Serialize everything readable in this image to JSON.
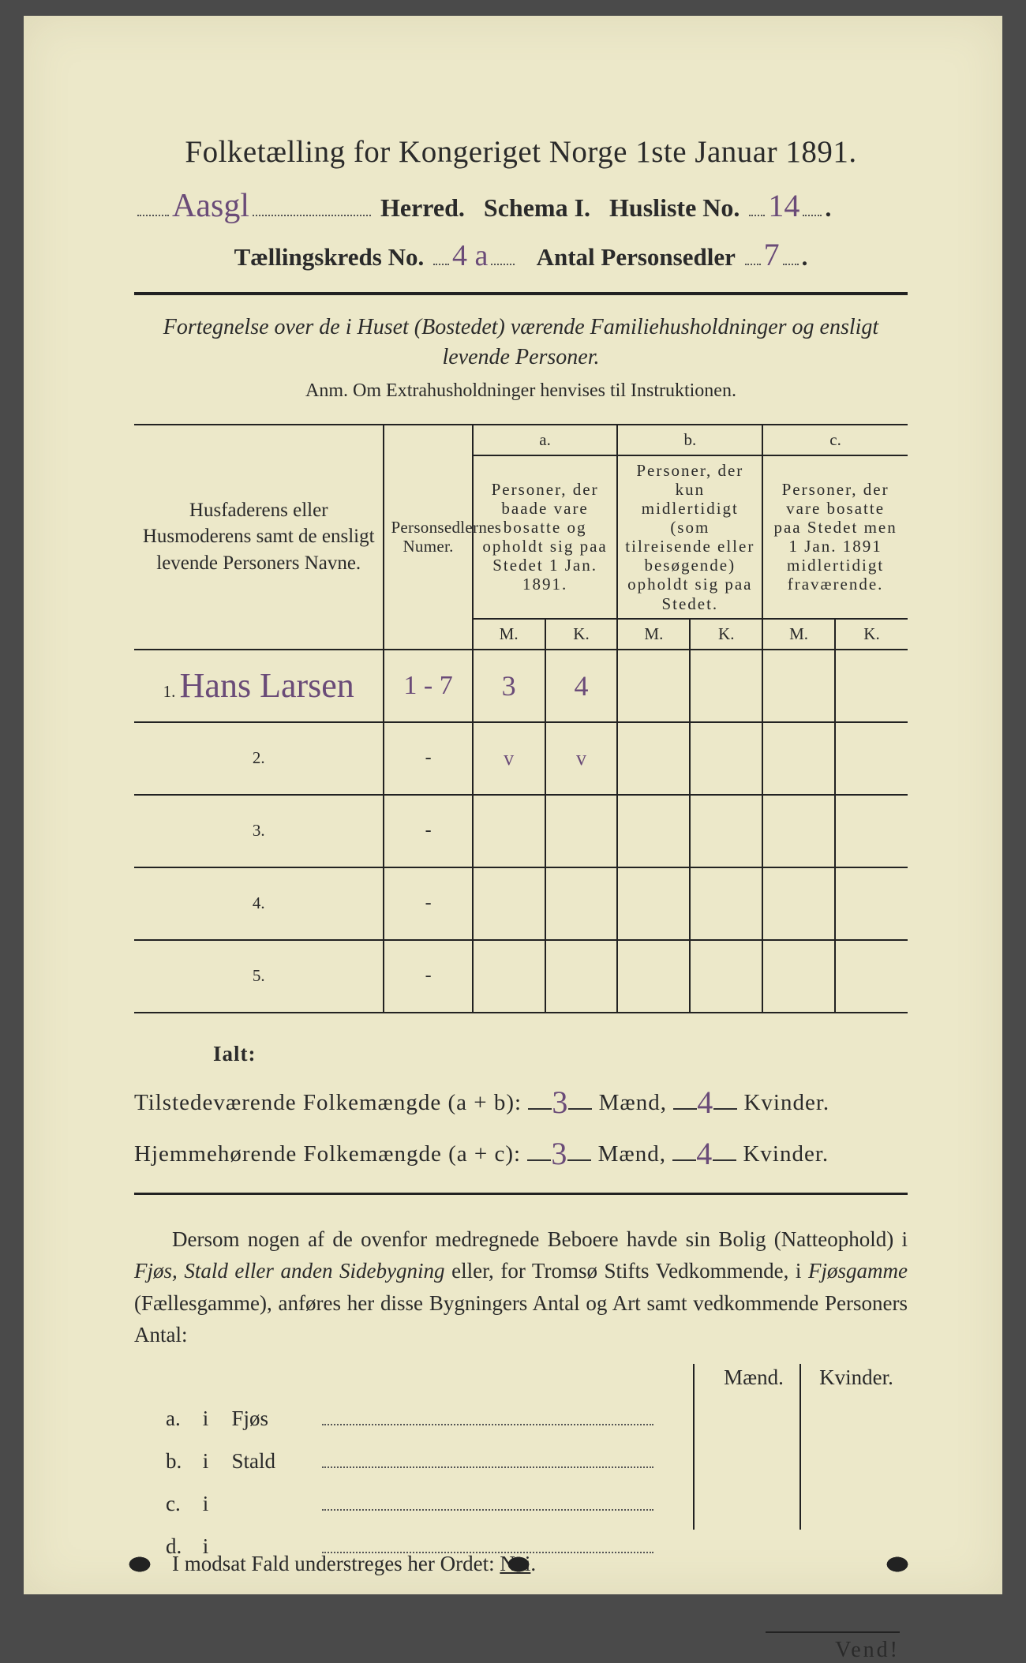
{
  "colors": {
    "paper": "#ece8c9",
    "ink": "#2a2a2a",
    "handwriting": "#6a4b78",
    "rule": "#222222",
    "background": "#4a4a4a"
  },
  "typography": {
    "title_fontsize_pt": 29,
    "body_fontsize_pt": 20,
    "handwriting_font": "cursive"
  },
  "title": "Folketælling for Kongeriget Norge 1ste Januar 1891.",
  "line2": {
    "herred_hw": "Aasgl",
    "herred_label": "Herred.",
    "schema_label": "Schema I.",
    "husliste_label": "Husliste No.",
    "husliste_hw": "14",
    "dot": "."
  },
  "line3": {
    "kreds_label": "Tællingskreds No.",
    "kreds_hw": "4 a",
    "antal_label": "Antal Personsedler",
    "antal_hw": "7",
    "dot": "."
  },
  "subtitle_line1": "Fortegnelse over de i Huset (Bostedet) værende Familiehusholdninger og ensligt",
  "subtitle_line2": "levende Personer.",
  "anm": "Anm.  Om Extrahusholdninger henvises til Instruktionen.",
  "table": {
    "head_name": "Husfaderens eller Husmoderens samt de ensligt levende Personers Navne.",
    "head_num": "Personsedlernes Numer.",
    "a_letter": "a.",
    "b_letter": "b.",
    "c_letter": "c.",
    "a_desc": "Personer, der baade vare bosatte og opholdt sig paa Stedet 1 Jan. 1891.",
    "b_desc": "Personer, der kun midlertidigt (som tilreisende eller besøgende) opholdt sig paa Stedet.",
    "c_desc": "Personer, der vare bosatte paa Stedet men 1 Jan. 1891 midlertidigt fraværende.",
    "m": "M.",
    "k": "K.",
    "rows": [
      {
        "n": "1.",
        "name_hw": "Hans Larsen",
        "num_hw": "1 - 7",
        "a_m": "3",
        "a_k": "4",
        "b_m": "",
        "b_k": "",
        "c_m": "",
        "c_k": ""
      },
      {
        "n": "2.",
        "name_hw": "",
        "num_hw": "-",
        "a_m": "✓",
        "a_k": "✓",
        "b_m": "",
        "b_k": "",
        "c_m": "",
        "c_k": ""
      },
      {
        "n": "3.",
        "name_hw": "",
        "num_hw": "-",
        "a_m": "",
        "a_k": "",
        "b_m": "",
        "b_k": "",
        "c_m": "",
        "c_k": ""
      },
      {
        "n": "4.",
        "name_hw": "",
        "num_hw": "-",
        "a_m": "",
        "a_k": "",
        "b_m": "",
        "b_k": "",
        "c_m": "",
        "c_k": ""
      },
      {
        "n": "5.",
        "name_hw": "",
        "num_hw": "-",
        "a_m": "",
        "a_k": "",
        "b_m": "",
        "b_k": "",
        "c_m": "",
        "c_k": ""
      }
    ]
  },
  "ialt_label": "Ialt:",
  "sum": {
    "present_label": "Tilstedeværende Folkemængde (a + b):",
    "home_label": "Hjemmehørende Folkemængde (a + c):",
    "maend": "Mænd,",
    "kvinder": "Kvinder.",
    "present_m": "3",
    "present_k": "4",
    "home_m": "3",
    "home_k": "4"
  },
  "para": {
    "t1": "Dersom nogen af de ovenfor medregnede Beboere havde sin Bolig (Natteophold) i ",
    "i1": "Fjøs, Stald eller anden Sidebygning",
    "t2": " eller, for Tromsø Stifts Vedkommende, i ",
    "i2": "Fjøsgamme",
    "t3": " (Fællesgamme), anføres her disse Bygningers Antal og Art samt vedkommende Personers Antal:"
  },
  "mkv": {
    "maend": "Mænd.",
    "kvinder": "Kvinder.",
    "rows": [
      {
        "lab": "a.",
        "i": "i",
        "place": "Fjøs"
      },
      {
        "lab": "b.",
        "i": "i",
        "place": "Stald"
      },
      {
        "lab": "c.",
        "i": "i",
        "place": ""
      },
      {
        "lab": "d.",
        "i": "i",
        "place": ""
      }
    ]
  },
  "modsat_pre": "I modsat Fald understreges her Ordet: ",
  "modsat_word": "Nei",
  "modsat_post": ".",
  "vend": "Vend!"
}
